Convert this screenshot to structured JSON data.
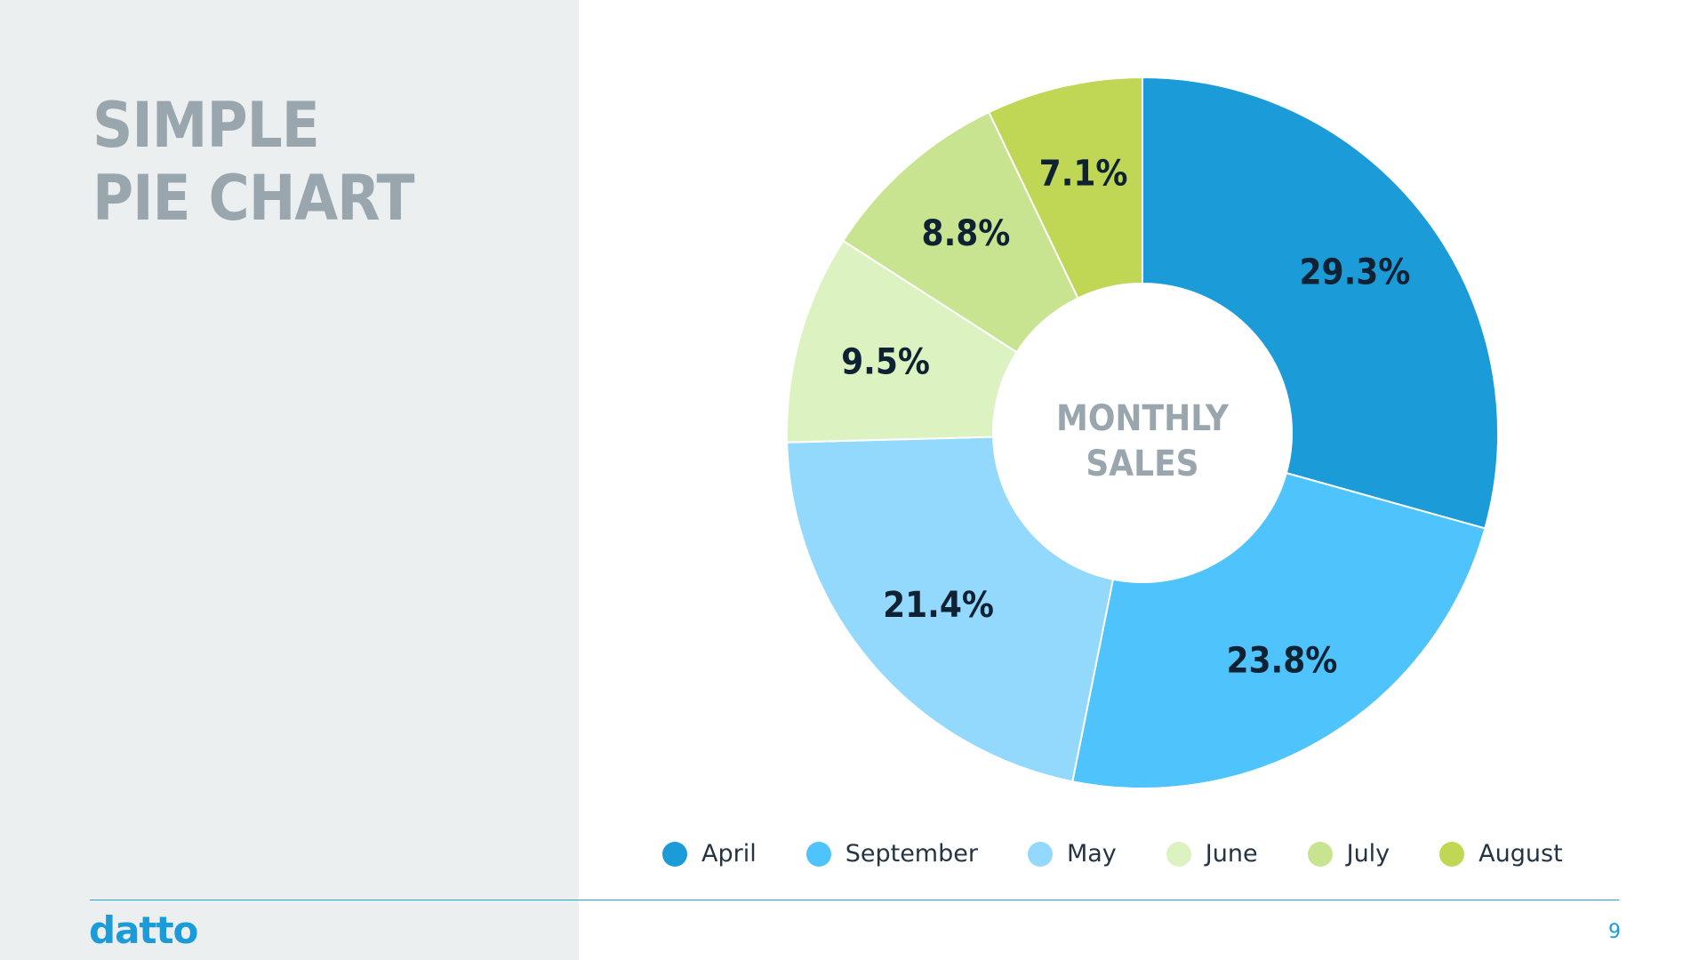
{
  "slide": {
    "title_line1": "SIMPLE",
    "title_line2": "PIE CHART",
    "brand": "datto",
    "page_number": "9"
  },
  "chart_data": {
    "type": "pie",
    "style": "donut",
    "center_label_line1": "MONTHLY",
    "center_label_line2": "SALES",
    "categories": [
      "April",
      "September",
      "May",
      "June",
      "July",
      "August"
    ],
    "values": [
      29.3,
      23.8,
      21.4,
      9.5,
      8.8,
      7.1
    ],
    "data_labels": [
      "29.3%",
      "23.8%",
      "21.4%",
      "9.5%",
      "8.8%",
      "7.1%"
    ],
    "colors": [
      "#1b9cd8",
      "#4fc3fb",
      "#93d8fd",
      "#dcf3c1",
      "#c8e490",
      "#c0d755"
    ],
    "legend_position": "bottom",
    "start_angle_deg": 0,
    "direction": "clockwise"
  }
}
